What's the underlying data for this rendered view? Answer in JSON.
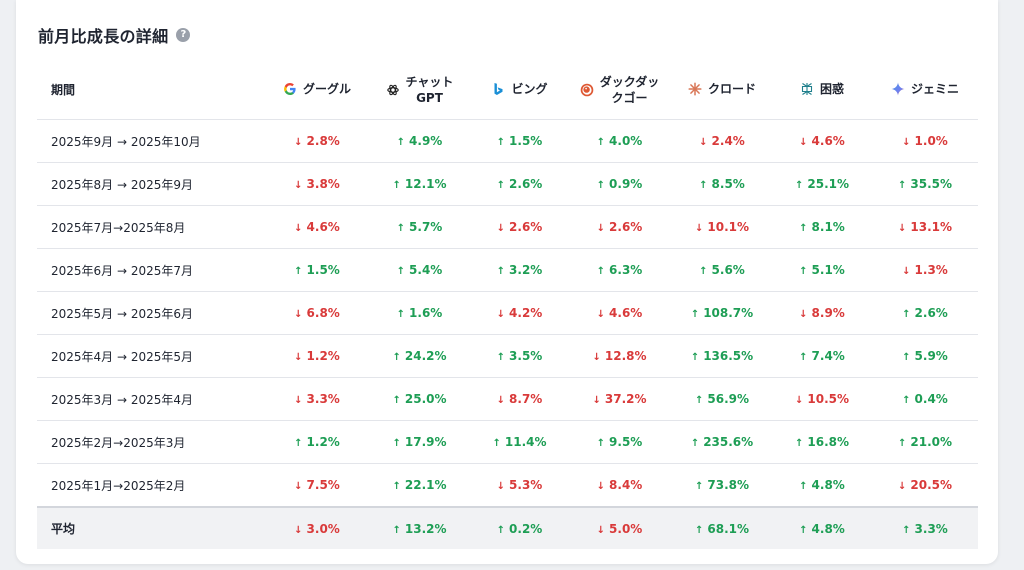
{
  "title": "前月比成長の詳細",
  "help_glyph": "?",
  "headers": {
    "period": "期間",
    "engines": [
      {
        "name": "グーグル",
        "icon": "google-icon"
      },
      {
        "name": "チャット\nGPT",
        "icon": "chatgpt-icon"
      },
      {
        "name": "ビング",
        "icon": "bing-icon"
      },
      {
        "name": "ダックダッ\nクゴー",
        "icon": "duckduckgo-icon"
      },
      {
        "name": "クロード",
        "icon": "claude-icon"
      },
      {
        "name": "困惑",
        "icon": "perplexity-icon"
      },
      {
        "name": "ジェミニ",
        "icon": "gemini-icon"
      }
    ]
  },
  "arrows": {
    "up": "↑",
    "down": "↓"
  },
  "colors": {
    "up": "#1e9e55",
    "down": "#d93a3a"
  },
  "rows": [
    {
      "period": "2025年9月 → 2025年10月",
      "values": [
        {
          "v": "2.8%",
          "d": "down"
        },
        {
          "v": "4.9%",
          "d": "up"
        },
        {
          "v": "1.5%",
          "d": "up"
        },
        {
          "v": "4.0%",
          "d": "up"
        },
        {
          "v": "2.4%",
          "d": "down"
        },
        {
          "v": "4.6%",
          "d": "down"
        },
        {
          "v": "1.0%",
          "d": "down"
        }
      ]
    },
    {
      "period": "2025年8月 → 2025年9月",
      "values": [
        {
          "v": "3.8%",
          "d": "down"
        },
        {
          "v": "12.1%",
          "d": "up"
        },
        {
          "v": "2.6%",
          "d": "up"
        },
        {
          "v": "0.9%",
          "d": "up"
        },
        {
          "v": "8.5%",
          "d": "up"
        },
        {
          "v": "25.1%",
          "d": "up"
        },
        {
          "v": "35.5%",
          "d": "up"
        }
      ]
    },
    {
      "period": "2025年7月→2025年8月",
      "values": [
        {
          "v": "4.6%",
          "d": "down"
        },
        {
          "v": "5.7%",
          "d": "up"
        },
        {
          "v": "2.6%",
          "d": "down"
        },
        {
          "v": "2.6%",
          "d": "down"
        },
        {
          "v": "10.1%",
          "d": "down"
        },
        {
          "v": "8.1%",
          "d": "up"
        },
        {
          "v": "13.1%",
          "d": "down"
        }
      ]
    },
    {
      "period": "2025年6月 → 2025年7月",
      "values": [
        {
          "v": "1.5%",
          "d": "up"
        },
        {
          "v": "5.4%",
          "d": "up"
        },
        {
          "v": "3.2%",
          "d": "up"
        },
        {
          "v": "6.3%",
          "d": "up"
        },
        {
          "v": "5.6%",
          "d": "up"
        },
        {
          "v": "5.1%",
          "d": "up"
        },
        {
          "v": "1.3%",
          "d": "down"
        }
      ]
    },
    {
      "period": "2025年5月 → 2025年6月",
      "values": [
        {
          "v": "6.8%",
          "d": "down"
        },
        {
          "v": "1.6%",
          "d": "up"
        },
        {
          "v": "4.2%",
          "d": "down"
        },
        {
          "v": "4.6%",
          "d": "down"
        },
        {
          "v": "108.7%",
          "d": "up"
        },
        {
          "v": "8.9%",
          "d": "down"
        },
        {
          "v": "2.6%",
          "d": "up"
        }
      ]
    },
    {
      "period": "2025年4月 → 2025年5月",
      "values": [
        {
          "v": "1.2%",
          "d": "down"
        },
        {
          "v": "24.2%",
          "d": "up"
        },
        {
          "v": "3.5%",
          "d": "up"
        },
        {
          "v": "12.8%",
          "d": "down"
        },
        {
          "v": "136.5%",
          "d": "up"
        },
        {
          "v": "7.4%",
          "d": "up"
        },
        {
          "v": "5.9%",
          "d": "up"
        }
      ]
    },
    {
      "period": "2025年3月 → 2025年4月",
      "values": [
        {
          "v": "3.3%",
          "d": "down"
        },
        {
          "v": "25.0%",
          "d": "up"
        },
        {
          "v": "8.7%",
          "d": "down"
        },
        {
          "v": "37.2%",
          "d": "down"
        },
        {
          "v": "56.9%",
          "d": "up"
        },
        {
          "v": "10.5%",
          "d": "down"
        },
        {
          "v": "0.4%",
          "d": "up"
        }
      ]
    },
    {
      "period": "2025年2月→2025年3月",
      "values": [
        {
          "v": "1.2%",
          "d": "up"
        },
        {
          "v": "17.9%",
          "d": "up"
        },
        {
          "v": "11.4%",
          "d": "up"
        },
        {
          "v": "9.5%",
          "d": "up"
        },
        {
          "v": "235.6%",
          "d": "up"
        },
        {
          "v": "16.8%",
          "d": "up"
        },
        {
          "v": "21.0%",
          "d": "up"
        }
      ]
    },
    {
      "period": "2025年1月→2025年2月",
      "values": [
        {
          "v": "7.5%",
          "d": "down"
        },
        {
          "v": "22.1%",
          "d": "up"
        },
        {
          "v": "5.3%",
          "d": "down"
        },
        {
          "v": "8.4%",
          "d": "down"
        },
        {
          "v": "73.8%",
          "d": "up"
        },
        {
          "v": "4.8%",
          "d": "up"
        },
        {
          "v": "20.5%",
          "d": "down"
        }
      ]
    }
  ],
  "average": {
    "label": "平均",
    "values": [
      {
        "v": "3.0%",
        "d": "down"
      },
      {
        "v": "13.2%",
        "d": "up"
      },
      {
        "v": "0.2%",
        "d": "up"
      },
      {
        "v": "5.0%",
        "d": "down"
      },
      {
        "v": "68.1%",
        "d": "up"
      },
      {
        "v": "4.8%",
        "d": "up"
      },
      {
        "v": "3.3%",
        "d": "up"
      }
    ]
  }
}
